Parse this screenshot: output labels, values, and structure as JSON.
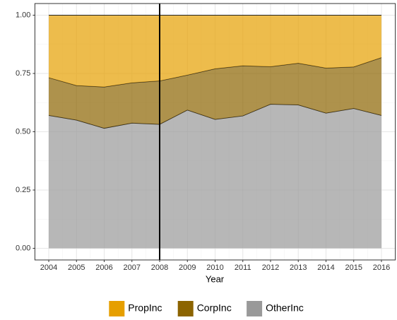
{
  "chart_data": {
    "type": "stacked_area",
    "x_label": "Year",
    "x": [
      2004,
      2005,
      2006,
      2007,
      2008,
      2009,
      2010,
      2011,
      2012,
      2013,
      2014,
      2015,
      2016
    ],
    "series": [
      {
        "name": "PropInc",
        "color": "#E69F00",
        "values": [
          0.268,
          0.302,
          0.308,
          0.29,
          0.282,
          0.257,
          0.23,
          0.217,
          0.221,
          0.206,
          0.227,
          0.222,
          0.182
        ]
      },
      {
        "name": "CorpInc",
        "color": "#8C6400",
        "values": [
          0.162,
          0.148,
          0.177,
          0.173,
          0.186,
          0.15,
          0.217,
          0.215,
          0.161,
          0.179,
          0.193,
          0.178,
          0.248
        ]
      },
      {
        "name": "OtherInc",
        "color": "#999999",
        "values": [
          0.57,
          0.55,
          0.515,
          0.537,
          0.532,
          0.593,
          0.553,
          0.568,
          0.618,
          0.615,
          0.58,
          0.6,
          0.57
        ]
      }
    ],
    "xlim": [
      2003.5,
      2016.5
    ],
    "ylim": [
      -0.05,
      1.05
    ],
    "xticks": [
      2004,
      2005,
      2006,
      2007,
      2008,
      2009,
      2010,
      2011,
      2012,
      2013,
      2014,
      2015,
      2016
    ],
    "yticks": [
      {
        "value": 0,
        "label": "0.00"
      },
      {
        "value": 0.25,
        "label": "0.25"
      },
      {
        "value": 0.5,
        "label": "0.50"
      },
      {
        "value": 0.75,
        "label": "0.75"
      },
      {
        "value": 1,
        "label": "1.00"
      }
    ],
    "vline": 2008,
    "grid": true,
    "legend": "bottom"
  }
}
